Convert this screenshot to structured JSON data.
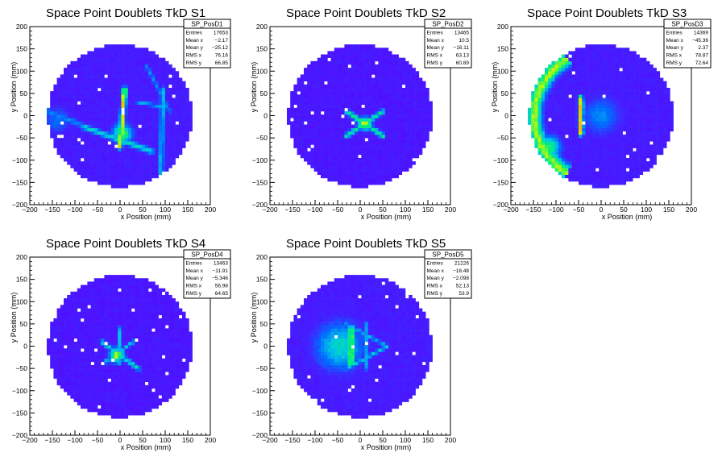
{
  "chart_data": [
    {
      "type": "heatmap",
      "title": "Space Point Doublets TkD S1",
      "xlabel": "x Position (mm)",
      "ylabel": "y Position (mm)",
      "xlim": [
        -200,
        200
      ],
      "ylim": [
        -200,
        200
      ],
      "xticks": [
        -200,
        -150,
        -100,
        -50,
        0,
        50,
        100,
        150,
        200
      ],
      "yticks": [
        -200,
        -150,
        -100,
        -50,
        0,
        50,
        100,
        150,
        200
      ],
      "stats": {
        "name": "SP_PosD1",
        "rows": [
          {
            "label": "Entries",
            "value": "17653"
          },
          {
            "label": "Mean x",
            "value": "−2.17"
          },
          {
            "label": "Mean y",
            "value": "−25.12"
          },
          {
            "label": "RMS x",
            "value": "76.16"
          },
          {
            "label": "RMS y",
            "value": "66.85"
          }
        ]
      },
      "disk_radius": 160,
      "base_level": 0.12,
      "features": [
        {
          "kind": "line",
          "x1": 0,
          "y1": -70,
          "x2": 10,
          "y2": 60,
          "level": 0.85,
          "width": 5
        },
        {
          "kind": "line",
          "x1": -80,
          "y1": -25,
          "x2": 70,
          "y2": -80,
          "level": 0.55,
          "width": 6
        },
        {
          "kind": "line",
          "x1": -160,
          "y1": 10,
          "x2": 10,
          "y2": -60,
          "level": 0.4,
          "width": 6
        },
        {
          "kind": "line",
          "x1": 90,
          "y1": -150,
          "x2": 95,
          "y2": 60,
          "level": 0.5,
          "width": 5
        },
        {
          "kind": "line",
          "x1": 40,
          "y1": 30,
          "x2": 100,
          "y2": 20,
          "level": 0.45,
          "width": 4
        },
        {
          "kind": "line",
          "x1": 60,
          "y1": 110,
          "x2": 110,
          "y2": 10,
          "level": 0.4,
          "width": 4
        },
        {
          "kind": "blob",
          "x": -140,
          "y": -10,
          "r": 25,
          "level": 0.35
        },
        {
          "kind": "blob",
          "x": 5,
          "y": -40,
          "r": 18,
          "level": 0.7
        }
      ]
    },
    {
      "type": "heatmap",
      "title": "Space Point Doublets TkD S2",
      "xlabel": "x Position (mm)",
      "ylabel": "y Position (mm)",
      "xlim": [
        -200,
        200
      ],
      "ylim": [
        -200,
        200
      ],
      "xticks": [
        -200,
        -150,
        -100,
        -50,
        0,
        50,
        100,
        150,
        200
      ],
      "yticks": [
        -200,
        -150,
        -100,
        -50,
        0,
        50,
        100,
        150,
        200
      ],
      "stats": {
        "name": "SP_PosD2",
        "rows": [
          {
            "label": "Entries",
            "value": "13465"
          },
          {
            "label": "Mean x",
            "value": "10.5"
          },
          {
            "label": "Mean y",
            "value": "−16.11"
          },
          {
            "label": "RMS x",
            "value": "63.13"
          },
          {
            "label": "RMS y",
            "value": "60.89"
          }
        ]
      },
      "disk_radius": 160,
      "base_level": 0.1,
      "features": [
        {
          "kind": "line",
          "x1": -30,
          "y1": 10,
          "x2": 50,
          "y2": -45,
          "level": 0.65,
          "width": 5
        },
        {
          "kind": "line",
          "x1": -30,
          "y1": -45,
          "x2": 50,
          "y2": 10,
          "level": 0.6,
          "width": 5
        },
        {
          "kind": "blob",
          "x": 10,
          "y": -18,
          "r": 12,
          "level": 0.8
        }
      ]
    },
    {
      "type": "heatmap",
      "title": "Space Point Doublets TkD S3",
      "xlabel": "x Position (mm)",
      "ylabel": "y Position (mm)",
      "xlim": [
        -200,
        200
      ],
      "ylim": [
        -200,
        200
      ],
      "xticks": [
        -200,
        -150,
        -100,
        -50,
        0,
        50,
        100,
        150,
        200
      ],
      "yticks": [
        -200,
        -150,
        -100,
        -50,
        0,
        50,
        100,
        150,
        200
      ],
      "stats": {
        "name": "SP_PosD3",
        "rows": [
          {
            "label": "Entries",
            "value": "14369"
          },
          {
            "label": "Mean x",
            "value": "−45.36"
          },
          {
            "label": "Mean y",
            "value": "2.37"
          },
          {
            "label": "RMS x",
            "value": "78.87"
          },
          {
            "label": "RMS y",
            "value": "72.64"
          }
        ]
      },
      "disk_radius": 160,
      "base_level": 0.12,
      "features": [
        {
          "kind": "arc",
          "cx": 0,
          "cy": 0,
          "r": 148,
          "a1": 120,
          "a2": 240,
          "level": 0.75,
          "width": 14
        },
        {
          "kind": "line",
          "x1": -45,
          "y1": -40,
          "x2": -45,
          "y2": 40,
          "level": 0.85,
          "width": 5
        },
        {
          "kind": "blob",
          "x": 0,
          "y": 0,
          "r": 35,
          "level": 0.4
        },
        {
          "kind": "blob",
          "x": -115,
          "y": -70,
          "r": 20,
          "level": 0.7
        }
      ]
    },
    {
      "type": "heatmap",
      "title": "Space Point Doublets TkD S4",
      "xlabel": "x Position (mm)",
      "ylabel": "y Position (mm)",
      "xlim": [
        -200,
        200
      ],
      "ylim": [
        -200,
        200
      ],
      "xticks": [
        -200,
        -150,
        -100,
        -50,
        0,
        50,
        100,
        150,
        200
      ],
      "yticks": [
        -200,
        -150,
        -100,
        -50,
        0,
        50,
        100,
        150,
        200
      ],
      "stats": {
        "name": "SP_PosD4",
        "rows": [
          {
            "label": "Entries",
            "value": "13463"
          },
          {
            "label": "Mean x",
            "value": "−11.91"
          },
          {
            "label": "Mean y",
            "value": "−5.346"
          },
          {
            "label": "RMS x",
            "value": "56.98"
          },
          {
            "label": "RMS y",
            "value": "64.65"
          }
        ]
      },
      "disk_radius": 160,
      "base_level": 0.1,
      "features": [
        {
          "kind": "line",
          "x1": -40,
          "y1": 10,
          "x2": 40,
          "y2": -50,
          "level": 0.55,
          "width": 5
        },
        {
          "kind": "line",
          "x1": 0,
          "y1": 40,
          "x2": 0,
          "y2": -40,
          "level": 0.5,
          "width": 4
        },
        {
          "kind": "line",
          "x1": -40,
          "y1": -40,
          "x2": 30,
          "y2": 10,
          "level": 0.5,
          "width": 4
        },
        {
          "kind": "blob",
          "x": -8,
          "y": -20,
          "r": 14,
          "level": 0.75
        }
      ]
    },
    {
      "type": "heatmap",
      "title": "Space Point Doublets TkD S5",
      "xlabel": "x Position (mm)",
      "ylabel": "y Position (mm)",
      "xlim": [
        -200,
        200
      ],
      "ylim": [
        -200,
        200
      ],
      "xticks": [
        -200,
        -150,
        -100,
        -50,
        0,
        50,
        100,
        150,
        200
      ],
      "yticks": [
        -200,
        -150,
        -100,
        -50,
        0,
        50,
        100,
        150,
        200
      ],
      "stats": {
        "name": "SP_PosD5",
        "rows": [
          {
            "label": "Entries",
            "value": "21226"
          },
          {
            "label": "Mean x",
            "value": "−18.48"
          },
          {
            "label": "Mean y",
            "value": "−2.098"
          },
          {
            "label": "RMS x",
            "value": "52.13"
          },
          {
            "label": "RMS y",
            "value": "53.9"
          }
        ]
      },
      "disk_radius": 160,
      "base_level": 0.12,
      "features": [
        {
          "kind": "blob",
          "x": -45,
          "y": 0,
          "r": 45,
          "level": 0.55
        },
        {
          "kind": "line",
          "x1": -20,
          "y1": -40,
          "x2": -20,
          "y2": 40,
          "level": 0.85,
          "width": 5
        },
        {
          "kind": "line",
          "x1": -30,
          "y1": -50,
          "x2": 60,
          "y2": 0,
          "level": 0.5,
          "width": 4
        },
        {
          "kind": "line",
          "x1": -30,
          "y1": 50,
          "x2": 60,
          "y2": 0,
          "level": 0.45,
          "width": 4
        },
        {
          "kind": "line",
          "x1": 15,
          "y1": -50,
          "x2": 15,
          "y2": 50,
          "level": 0.45,
          "width": 4
        }
      ]
    }
  ]
}
